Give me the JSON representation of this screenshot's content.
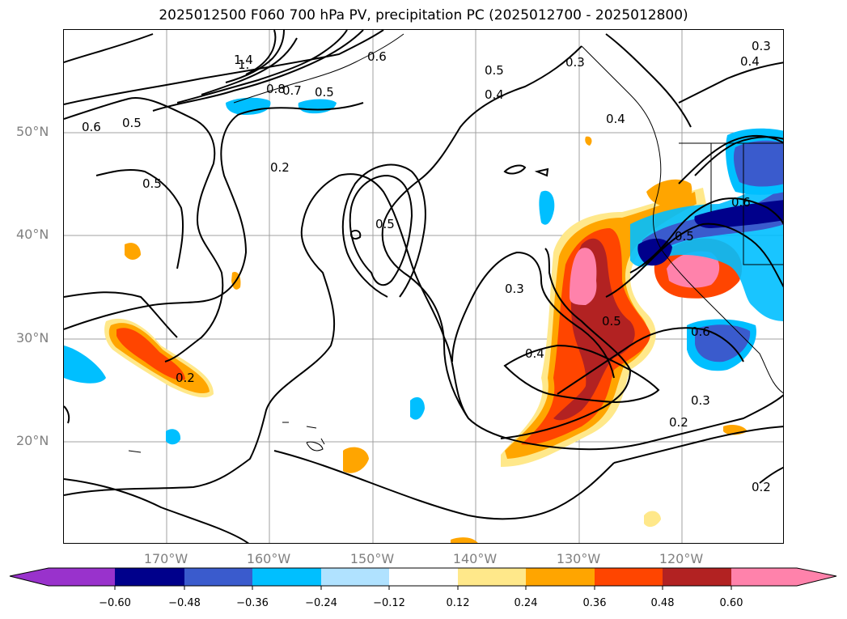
{
  "title": "2025012500 F060 700 hPa PV, precipitation PC (2025012700 - 2025012800)",
  "lat_labels": [
    "50°N",
    "40°N",
    "30°N",
    "20°N"
  ],
  "lon_labels": [
    "170°W",
    "160°W",
    "150°W",
    "140°W",
    "130°W",
    "120°W"
  ],
  "contour_labels": [
    "1.4",
    "1.",
    "0.8",
    "0.7",
    "0.5",
    "0.6",
    "0.5",
    "0.4",
    "0.3",
    "0.4",
    "0.3",
    "0.4",
    "0.6",
    "0.5",
    "0.2",
    "0.5",
    "0.5",
    "0.3",
    "0.4",
    "0.5",
    "0.5",
    "0.6",
    "0.6",
    "0.2",
    "0.3",
    "0.2",
    "0.2"
  ],
  "colorbar": {
    "ticks": [
      "−0.60",
      "−0.48",
      "−0.36",
      "−0.24",
      "−0.12",
      "0.12",
      "0.24",
      "0.36",
      "0.48",
      "0.60"
    ],
    "colors": [
      "#9932cc",
      "#00008b",
      "#3a5bcd",
      "#00bfff",
      "#b0e2ff",
      "#ffffff",
      "#ffe88a",
      "#ffa500",
      "#ff4500",
      "#b22222",
      "#ff82ab"
    ]
  }
}
